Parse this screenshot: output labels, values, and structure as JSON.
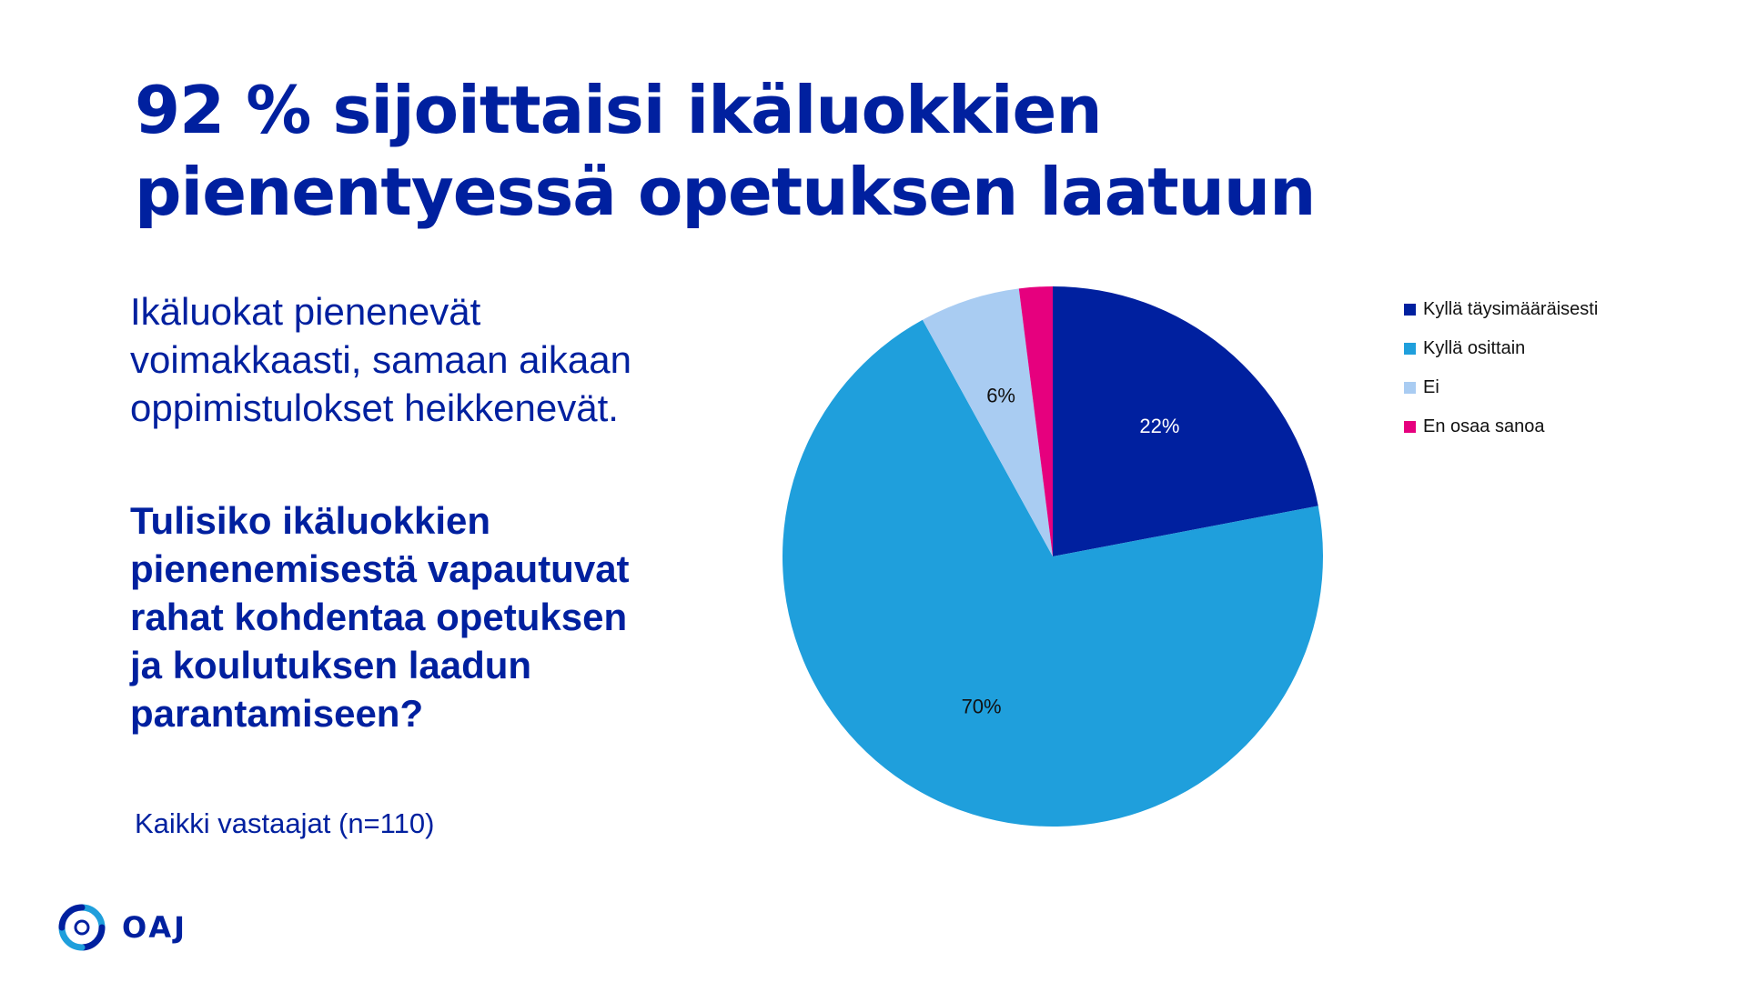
{
  "slide": {
    "title": "92 % sijoittaisi ikäluokkien pienentyessä opetuksen laatuun",
    "intro": "Ikäluokat pienenevät voimakkaasti, samaan aikaan oppimistulokset heikkenevät.",
    "question": "Tulisiko ikäluokkien pienenemisestä vapautuvat rahat kohdentaa opetuksen ja koulutuksen laadun parantamiseen?",
    "note": "Kaikki vastaajat (n=110)",
    "logo_text": "OAJ"
  },
  "chart_data": {
    "type": "pie",
    "categories": [
      "Kyllä täysimääräisesti",
      "Kyllä osittain",
      "Ei",
      "En osaa sanoa"
    ],
    "values": [
      22,
      70,
      6,
      2
    ],
    "data_labels": [
      "22%",
      "70%",
      "6%",
      ""
    ],
    "colors": [
      "#00209F",
      "#1F9FDC",
      "#A9CCF2",
      "#E6007E"
    ],
    "label_colors": [
      "#ffffff",
      "#111111",
      "#111111",
      "#111111"
    ],
    "legend_position": "right"
  }
}
